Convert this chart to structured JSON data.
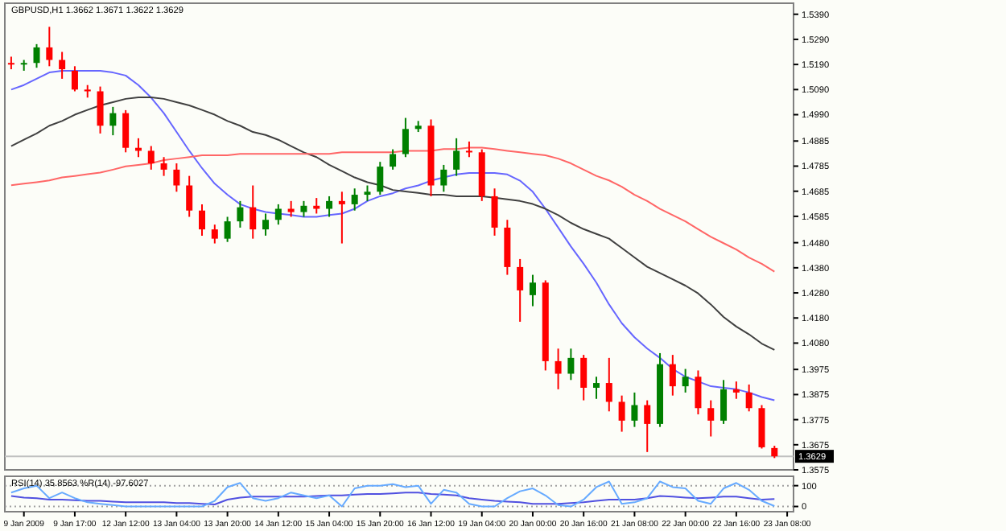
{
  "chart_data": [
    {
      "type": "candlestick",
      "title": "GBPUSD,H1 1.3662 1.3671 1.3622 1.3629",
      "categories": [
        null,
        null,
        null,
        null,
        null,
        null,
        null,
        null,
        null,
        null,
        null,
        null,
        null,
        null,
        null,
        null,
        null,
        null,
        null,
        null,
        null,
        null,
        null,
        null,
        null,
        null,
        null,
        null,
        null,
        null,
        null,
        null,
        null,
        null,
        null,
        null,
        null,
        null,
        null,
        null,
        null,
        null,
        null,
        null,
        null,
        null,
        null,
        null,
        null,
        null,
        null,
        null,
        null,
        null,
        null,
        null,
        null,
        null,
        null,
        null,
        null,
        null
      ],
      "tick_labels": "y",
      "ylim": [
        1.3575,
        1.5434
      ],
      "yticks": [
        {
          "value": 1.539,
          "label": "1.5390"
        },
        {
          "value": 1.529,
          "label": "1.5290"
        },
        {
          "value": 1.519,
          "label": "1.5190"
        },
        {
          "value": 1.509,
          "label": "1.5090"
        },
        {
          "value": 1.499,
          "label": "1.4990"
        },
        {
          "value": 1.4885,
          "label": "1.4885"
        },
        {
          "value": 1.4785,
          "label": "1.4785"
        },
        {
          "value": 1.4685,
          "label": "1.4685"
        },
        {
          "value": 1.4585,
          "label": "1.4585"
        },
        {
          "value": 1.448,
          "label": "1.4480"
        },
        {
          "value": 1.438,
          "label": "1.4380"
        },
        {
          "value": 1.428,
          "label": "1.4280"
        },
        {
          "value": 1.418,
          "label": "1.4180"
        },
        {
          "value": 1.408,
          "label": "1.4080"
        },
        {
          "value": 1.3975,
          "label": "1.3975"
        },
        {
          "value": 1.3875,
          "label": "1.3875"
        },
        {
          "value": 1.3775,
          "label": "1.3775"
        },
        {
          "value": 1.3675,
          "label": "1.3675"
        },
        {
          "value": 1.3575,
          "label": "1.3575"
        }
      ],
      "ohlc": [
        [
          1.5196,
          1.5221,
          1.5171,
          1.519
        ],
        [
          1.519,
          1.5208,
          1.5165,
          1.5196
        ],
        [
          1.5196,
          1.5271,
          1.5177,
          1.5258
        ],
        [
          1.5258,
          1.534,
          1.5183,
          1.5208
        ],
        [
          1.5208,
          1.524,
          1.5133,
          1.5171
        ],
        [
          1.5165,
          1.5183,
          1.5083,
          1.509
        ],
        [
          1.509,
          1.5108,
          1.5058,
          1.5083
        ],
        [
          1.5083,
          1.5102,
          1.4915,
          1.4946
        ],
        [
          1.4946,
          1.5021,
          1.4908,
          1.4996
        ],
        [
          1.4996,
          1.5008,
          1.484,
          1.4858
        ],
        [
          1.4858,
          1.4896,
          1.4821,
          1.4846
        ],
        [
          1.4846,
          1.4865,
          1.4771,
          1.4796
        ],
        [
          1.4796,
          1.4821,
          1.4746,
          1.4771
        ],
        [
          1.4771,
          1.4796,
          1.4683,
          1.4708
        ],
        [
          1.4708,
          1.4746,
          1.4583,
          1.4608
        ],
        [
          1.4608,
          1.4633,
          1.4508,
          1.4533
        ],
        [
          1.4533,
          1.4552,
          1.4477,
          1.4496
        ],
        [
          1.4496,
          1.4583,
          1.4483,
          1.4565
        ],
        [
          1.4565,
          1.4646,
          1.454,
          1.4621
        ],
        [
          1.4621,
          1.4708,
          1.4496,
          1.4533
        ],
        [
          1.4533,
          1.4596,
          1.4508,
          1.4571
        ],
        [
          1.4571,
          1.4633,
          1.4552,
          1.4615
        ],
        [
          1.4615,
          1.4646,
          1.4583,
          1.4602
        ],
        [
          1.4602,
          1.4646,
          1.4583,
          1.4627
        ],
        [
          1.4627,
          1.4658,
          1.4596,
          1.4615
        ],
        [
          1.4615,
          1.4665,
          1.4583,
          1.4646
        ],
        [
          1.4646,
          1.4683,
          1.4477,
          1.4633
        ],
        [
          1.4633,
          1.4696,
          1.4608,
          1.4671
        ],
        [
          1.4671,
          1.4708,
          1.4646,
          1.4683
        ],
        [
          1.4683,
          1.4802,
          1.4671,
          1.4783
        ],
        [
          1.4783,
          1.4852,
          1.4771,
          1.4833
        ],
        [
          1.4833,
          1.4977,
          1.4821,
          1.4933
        ],
        [
          1.4933,
          1.4965,
          1.4921,
          1.4946
        ],
        [
          1.4946,
          1.4971,
          1.4665,
          1.4708
        ],
        [
          1.4708,
          1.479,
          1.4683,
          1.4771
        ],
        [
          1.4771,
          1.4896,
          1.4746,
          1.4846
        ],
        [
          1.4846,
          1.4883,
          1.4821,
          1.484
        ],
        [
          1.484,
          1.4852,
          1.4646,
          1.4665
        ],
        [
          1.4665,
          1.4696,
          1.4508,
          1.454
        ],
        [
          1.454,
          1.4571,
          1.4352,
          1.4383
        ],
        [
          1.4383,
          1.4415,
          1.4165,
          1.429
        ],
        [
          1.4271,
          1.4352,
          1.4227,
          1.4321
        ],
        [
          1.4321,
          1.433,
          1.3971,
          1.4008
        ],
        [
          1.4008,
          1.4058,
          1.3896,
          1.3958
        ],
        [
          1.3958,
          1.4058,
          1.3933,
          1.4021
        ],
        [
          1.4021,
          1.4033,
          1.3852,
          1.3902
        ],
        [
          1.3902,
          1.3946,
          1.3858,
          1.3921
        ],
        [
          1.3921,
          1.4021,
          1.3808,
          1.3846
        ],
        [
          1.3846,
          1.3871,
          1.3727,
          1.3771
        ],
        [
          1.3771,
          1.3883,
          1.3746,
          1.3833
        ],
        [
          1.3833,
          1.3852,
          1.3646,
          1.3758
        ],
        [
          1.3758,
          1.404,
          1.3746,
          1.3996
        ],
        [
          1.3996,
          1.4033,
          1.3871,
          1.3908
        ],
        [
          1.3908,
          1.3977,
          1.3883,
          1.3946
        ],
        [
          1.3946,
          1.3971,
          1.3796,
          1.3821
        ],
        [
          1.3821,
          1.3852,
          1.3708,
          1.3771
        ],
        [
          1.3771,
          1.3933,
          1.3758,
          1.3896
        ],
        [
          1.3896,
          1.3927,
          1.3858,
          1.3883
        ],
        [
          1.3883,
          1.3915,
          1.3808,
          1.3821
        ],
        [
          1.3821,
          1.3833,
          1.366,
          1.3665
        ],
        [
          1.3662,
          1.3671,
          1.3622,
          1.3629
        ],
        null
      ],
      "colors": [
        "#ff0000",
        "#008000",
        "#008000",
        "#ff0000",
        "#ff0000",
        "#ff0000",
        "#ff0000",
        "#ff0000",
        "#008000",
        "#ff0000",
        "#ff0000",
        "#ff0000",
        "#ff0000",
        "#ff0000",
        "#ff0000",
        "#ff0000",
        "#ff0000",
        "#008000",
        "#008000",
        "#ff0000",
        "#008000",
        "#008000",
        "#ff0000",
        "#008000",
        "#ff0000",
        "#008000",
        "#ff0000",
        "#008000",
        "#008000",
        "#008000",
        "#008000",
        "#008000",
        "#008000",
        "#ff0000",
        "#008000",
        "#008000",
        "#ff0000",
        "#ff0000",
        "#ff0000",
        "#ff0000",
        "#ff0000",
        "#008000",
        "#ff0000",
        "#ff0000",
        "#008000",
        "#ff0000",
        "#008000",
        "#ff0000",
        "#ff0000",
        "#008000",
        "#ff0000",
        "#008000",
        "#ff0000",
        "#008000",
        "#ff0000",
        "#ff0000",
        "#008000",
        "#ff0000",
        "#ff0000",
        "#ff0000",
        "#ff0000",
        null
      ],
      "series": [
        {
          "type": "line",
          "color": "#6666ff",
          "values": [
            1.509,
            1.5108,
            1.5133,
            1.5158,
            1.5165,
            1.5165,
            1.5165,
            1.5165,
            1.5158,
            1.5146,
            1.5108,
            1.5058,
            1.4996,
            1.4921,
            1.4846,
            1.4777,
            1.4715,
            1.4671,
            1.4633,
            1.4615,
            1.4602,
            1.4596,
            1.459,
            1.4583,
            1.4583,
            1.459,
            1.4596,
            1.4615,
            1.4646,
            1.4665,
            1.4677,
            1.4696,
            1.4708,
            1.4727,
            1.474,
            1.4752,
            1.4758,
            1.4758,
            1.4758,
            1.4752,
            1.4727,
            1.4683,
            1.4615,
            1.454,
            1.4465,
            1.4396,
            1.4321,
            1.4234,
            1.4159,
            1.4103,
            1.4058,
            1.4021,
            1.3977,
            1.3946,
            1.3927,
            1.3908,
            1.3902,
            1.3896,
            1.3883,
            1.3865,
            1.3852,
            null
          ]
        },
        {
          "type": "line",
          "color": "#404040",
          "values": [
            1.4865,
            1.489,
            1.4915,
            1.4946,
            1.4965,
            1.499,
            1.5009,
            1.5027,
            1.504,
            1.5053,
            1.5059,
            1.5059,
            1.5053,
            1.504,
            1.5027,
            1.5009,
            1.499,
            1.4965,
            1.4946,
            1.4921,
            1.4909,
            1.489,
            1.4865,
            1.484,
            1.4821,
            1.479,
            1.4765,
            1.474,
            1.4721,
            1.4709,
            1.469,
            1.4684,
            1.4678,
            1.4671,
            1.4671,
            1.4665,
            1.4665,
            1.4665,
            1.4659,
            1.4653,
            1.4646,
            1.4634,
            1.4615,
            1.459,
            1.4559,
            1.4534,
            1.4515,
            1.4496,
            1.4459,
            1.4421,
            1.4384,
            1.4359,
            1.4334,
            1.4309,
            1.4278,
            1.4234,
            1.4184,
            1.4146,
            1.4115,
            1.4078,
            1.4053,
            null
          ]
        },
        {
          "type": "line",
          "color": "#ff6666",
          "values": [
            1.4709,
            1.4715,
            1.4721,
            1.4728,
            1.474,
            1.4746,
            1.4753,
            1.4759,
            1.4771,
            1.4784,
            1.479,
            1.4796,
            1.4809,
            1.4815,
            1.4821,
            1.4828,
            1.4828,
            1.4828,
            1.4834,
            1.4834,
            1.4834,
            1.4834,
            1.4834,
            1.4834,
            1.4834,
            1.4834,
            1.484,
            1.484,
            1.484,
            1.484,
            1.484,
            1.4846,
            1.4846,
            1.4846,
            1.4853,
            1.4853,
            1.4859,
            1.4859,
            1.4853,
            1.4846,
            1.484,
            1.4834,
            1.4828,
            1.4815,
            1.4796,
            1.4771,
            1.4746,
            1.4728,
            1.4703,
            1.4671,
            1.4646,
            1.4615,
            1.459,
            1.4565,
            1.4534,
            1.4503,
            1.4478,
            1.4453,
            1.4421,
            1.4396,
            1.4365,
            null
          ]
        }
      ],
      "ref_lines": [
        {
          "axis": "y",
          "value": 1.3629,
          "label": "1.3629",
          "color": "#c0c0c0"
        }
      ]
    },
    {
      "type": "line",
      "title": "RSI(14) 35.8563 %R(14) -97.6027",
      "categories": [
        null,
        "9 Jan 2009",
        null,
        null,
        null,
        "9 Jan 17:00",
        null,
        null,
        null,
        "12 Jan 12:00",
        null,
        null,
        null,
        "13 Jan 04:00",
        null,
        null,
        null,
        "13 Jan 20:00",
        null,
        null,
        null,
        "14 Jan 12:00",
        null,
        null,
        null,
        "15 Jan 04:00",
        null,
        null,
        null,
        "15 Jan 20:00",
        null,
        null,
        null,
        "16 Jan 12:00",
        null,
        null,
        null,
        "19 Jan 04:00",
        null,
        null,
        null,
        "20 Jan 00:00",
        null,
        null,
        null,
        "20 Jan 16:00",
        null,
        null,
        null,
        "21 Jan 08:00",
        null,
        null,
        null,
        "22 Jan 00:00",
        null,
        null,
        null,
        "22 Jan 16:00",
        null,
        null,
        null,
        "23 Jan 08:00"
      ],
      "ylim": [
        -25,
        145
      ],
      "yticks": [
        100,
        0
      ],
      "grid": "y",
      "series": [
        {
          "color": "#5050e0",
          "values": [
            50,
            43,
            40,
            33,
            33,
            30,
            27,
            27,
            23,
            20,
            20,
            20,
            20,
            17,
            17,
            13,
            10,
            33,
            43,
            47,
            47,
            47,
            47,
            47,
            50,
            53,
            53,
            57,
            60,
            60,
            63,
            67,
            67,
            60,
            57,
            53,
            40,
            33,
            27,
            23,
            20,
            13,
            13,
            13,
            17,
            20,
            27,
            33,
            33,
            33,
            40,
            50,
            47,
            43,
            40,
            43,
            47,
            47,
            40,
            33,
            36,
            null
          ]
        },
        {
          "color": "#66aaff",
          "values": [
            67,
            87,
            100,
            40,
            67,
            40,
            20,
            13,
            7,
            0,
            0,
            0,
            0,
            0,
            0,
            0,
            27,
            93,
            113,
            40,
            27,
            40,
            67,
            53,
            40,
            53,
            0,
            87,
            100,
            100,
            107,
            93,
            100,
            13,
            80,
            67,
            13,
            0,
            0,
            40,
            73,
            87,
            53,
            7,
            0,
            33,
            93,
            120,
            13,
            20,
            40,
            120,
            93,
            87,
            27,
            13,
            87,
            113,
            80,
            27,
            2,
            null
          ]
        }
      ]
    }
  ]
}
